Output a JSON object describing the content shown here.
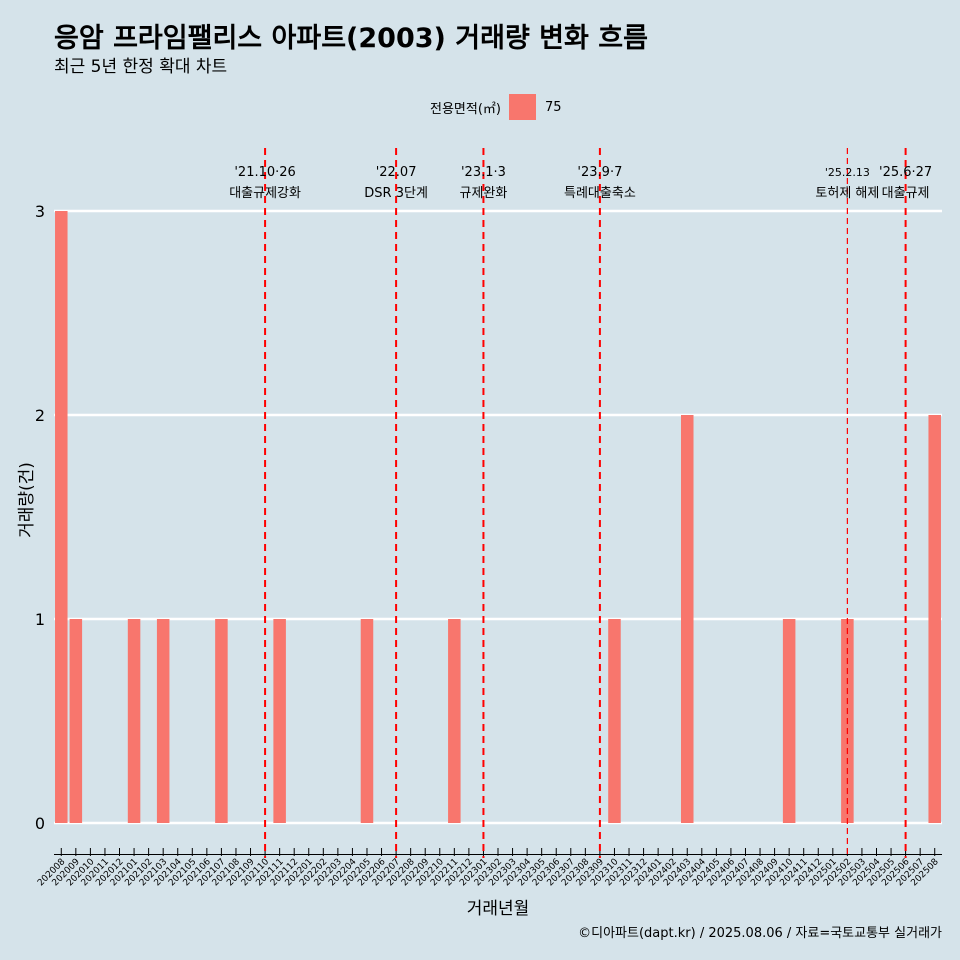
{
  "title": "응암 프라임팰리스 아파트(2003) 거래량 변화 흐름",
  "subtitle": "최근 5년 한정 확대 차트",
  "legend": {
    "title": "전용면적(㎡)",
    "items": [
      {
        "label": "75",
        "color": "#f8766d"
      }
    ]
  },
  "caption": "©디아파트(dapt.kr) / 2025.08.06 / 자료=국토교통부 실거래가",
  "chart_data": {
    "type": "bar",
    "xlabel": "거래년월",
    "ylabel": "거래량(건)",
    "ylim": [
      0,
      3
    ],
    "yticks": [
      0,
      1,
      2,
      3
    ],
    "grid": true,
    "legend_position": "top",
    "categories": [
      "202008",
      "202009",
      "202010",
      "202011",
      "202012",
      "202101",
      "202102",
      "202103",
      "202104",
      "202105",
      "202106",
      "202107",
      "202108",
      "202109",
      "202110",
      "202111",
      "202112",
      "202201",
      "202202",
      "202203",
      "202204",
      "202205",
      "202206",
      "202207",
      "202208",
      "202209",
      "202210",
      "202211",
      "202212",
      "202301",
      "202302",
      "202303",
      "202304",
      "202305",
      "202306",
      "202307",
      "202308",
      "202309",
      "202310",
      "202311",
      "202312",
      "202401",
      "202402",
      "202403",
      "202404",
      "202405",
      "202406",
      "202407",
      "202408",
      "202409",
      "202410",
      "202411",
      "202412",
      "202501",
      "202502",
      "202503",
      "202504",
      "202505",
      "202506",
      "202507",
      "202508"
    ],
    "series": [
      {
        "name": "75",
        "color": "#f8766d",
        "values": [
          3,
          1,
          0,
          0,
          0,
          1,
          0,
          1,
          0,
          0,
          0,
          1,
          0,
          0,
          0,
          1,
          0,
          0,
          0,
          0,
          0,
          1,
          0,
          0,
          0,
          0,
          0,
          1,
          0,
          0,
          0,
          0,
          0,
          0,
          0,
          0,
          0,
          0,
          1,
          0,
          0,
          0,
          0,
          2,
          0,
          0,
          0,
          0,
          0,
          0,
          1,
          0,
          0,
          0,
          1,
          0,
          0,
          0,
          0,
          0,
          2
        ]
      }
    ],
    "annotations": [
      {
        "x": "202110",
        "line1": "'21.10·26",
        "line2": "대출규제강화",
        "style": "dashed-thick"
      },
      {
        "x": "202207",
        "line1": "'22.07",
        "line2": "DSR 3단계",
        "style": "dashed-thick"
      },
      {
        "x": "202301",
        "line1": "'23.1·3",
        "line2": "규제완화",
        "style": "dashed-thick"
      },
      {
        "x": "202309",
        "line1": "'23.9·7",
        "line2": "특례대출축소",
        "style": "dashed-thick"
      },
      {
        "x": "202502",
        "line1": "'25.2.13",
        "line2": "토허제 해제",
        "style": "dashed-thin"
      },
      {
        "x": "202506",
        "line1": "'25.6·27",
        "line2": "대출규제",
        "style": "dashed-thick"
      }
    ]
  }
}
